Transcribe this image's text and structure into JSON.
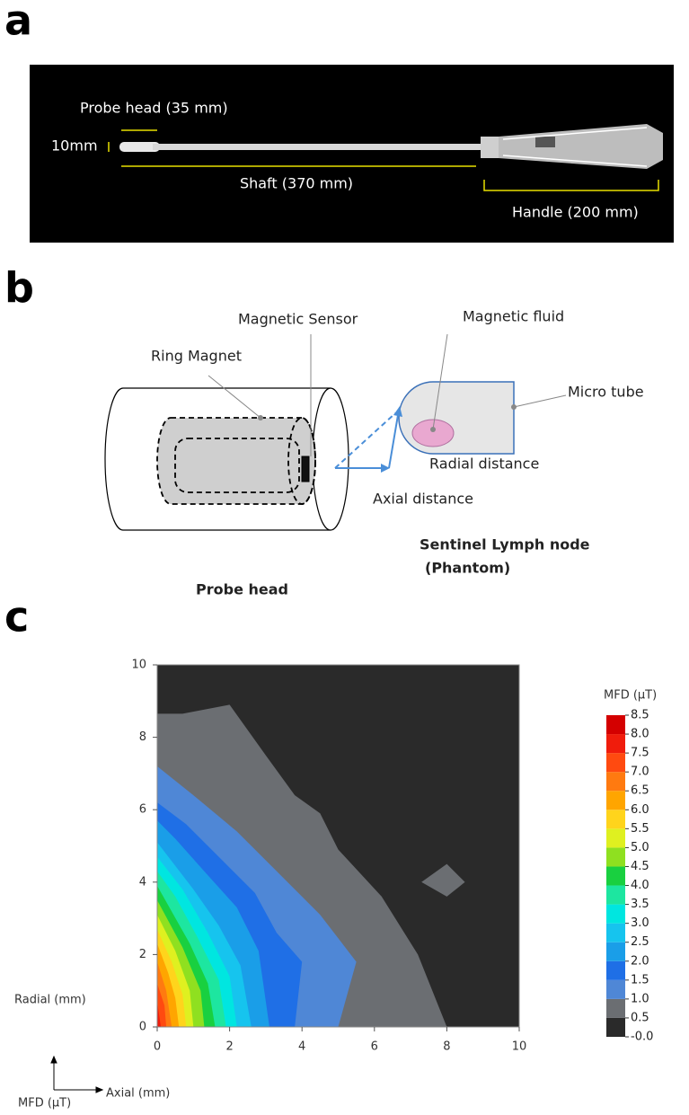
{
  "panel_a": {
    "label": "a",
    "probe_head": "Probe head (35 mm)",
    "diameter": "10mm",
    "shaft": "Shaft (370 mm)",
    "handle": "Handle (200 mm)"
  },
  "panel_b": {
    "label": "b",
    "magnetic_sensor": "Magnetic Sensor",
    "ring_magnet": "Ring Magnet",
    "magnetic_fluid": "Magnetic fluid",
    "micro_tube": "Micro tube",
    "radial_distance": "Radial distance",
    "axial_distance": "Axial distance",
    "phantom_title": "Sentinel Lymph node",
    "phantom_sub": "(Phantom)",
    "probe_head": "Probe head"
  },
  "panel_c_label": "c",
  "chart_data": {
    "type": "contour",
    "x_label": "Axial (mm)",
    "y_label": "Radial (mm)",
    "z_label": "MFD (μT)",
    "xlim": [
      0,
      10
    ],
    "ylim": [
      0,
      10
    ],
    "xticks": [
      0,
      2,
      4,
      6,
      8,
      10
    ],
    "yticks": [
      0,
      2,
      4,
      6,
      8,
      10
    ],
    "clim": [
      0,
      8.5
    ],
    "cticks": [
      {
        "value": 0,
        "label": "-0.0"
      },
      0.5,
      {
        "value": 1,
        "label": "1.0"
      },
      1.5,
      {
        "value": 2,
        "label": "2.0"
      },
      2.5,
      {
        "value": 3,
        "label": "3.0"
      },
      3.5,
      {
        "value": 4,
        "label": "4.0"
      },
      4.5,
      {
        "value": 5,
        "label": "5.0"
      },
      5.5,
      {
        "value": 6,
        "label": "6.0"
      },
      6.5,
      {
        "value": 7,
        "label": "7.0"
      },
      7.5,
      {
        "value": 8,
        "label": "8.0"
      },
      8.5
    ],
    "colors": [
      "#2a2a2a",
      "#6b6e72",
      "#4f87d6",
      "#1f6fe6",
      "#1a9ee8",
      "#16c4ee",
      "#00e6e0",
      "#1de6a0",
      "#19d040",
      "#8fe020",
      "#dff020",
      "#ffd41c",
      "#ffa500",
      "#ff7a10",
      "#ff4a10",
      "#f01c0c",
      "#d40000"
    ],
    "regions": [
      {
        "level": 0,
        "points": [
          [
            0,
            0
          ],
          [
            0,
            10
          ],
          [
            10,
            10
          ],
          [
            10,
            0
          ]
        ]
      },
      {
        "level": 0.5,
        "points": [
          [
            0,
            8.65
          ],
          [
            0.7,
            8.65
          ],
          [
            2,
            8.9
          ],
          [
            3,
            7.5
          ],
          [
            3.8,
            6.4
          ],
          [
            4.5,
            5.9
          ],
          [
            5,
            4.9
          ],
          [
            6.2,
            3.6
          ],
          [
            7.2,
            2
          ],
          [
            8,
            0
          ],
          [
            0,
            0
          ]
        ]
      },
      {
        "level": 0.5,
        "points": [
          [
            7.3,
            4
          ],
          [
            8,
            4.5
          ],
          [
            8.5,
            4
          ],
          [
            8,
            3.6
          ]
        ]
      },
      {
        "level": 1,
        "points": [
          [
            0,
            7.2
          ],
          [
            1,
            6.4
          ],
          [
            2.2,
            5.4
          ],
          [
            3.2,
            4.4
          ],
          [
            4.5,
            3.1
          ],
          [
            5.5,
            1.8
          ],
          [
            5,
            0
          ],
          [
            0,
            0
          ]
        ]
      },
      {
        "level": 1.5,
        "points": [
          [
            0,
            6.2
          ],
          [
            0.8,
            5.6
          ],
          [
            1.8,
            4.6
          ],
          [
            2.7,
            3.7
          ],
          [
            3.3,
            2.6
          ],
          [
            4,
            1.8
          ],
          [
            3.8,
            0
          ],
          [
            0,
            0
          ]
        ]
      },
      {
        "level": 2,
        "points": [
          [
            0,
            5.7
          ],
          [
            0.5,
            5.2
          ],
          [
            1.3,
            4.3
          ],
          [
            2.2,
            3.3
          ],
          [
            2.8,
            2.1
          ],
          [
            3.1,
            0
          ],
          [
            0,
            0
          ]
        ]
      },
      {
        "level": 2.5,
        "points": [
          [
            0,
            5.1
          ],
          [
            1,
            3.8
          ],
          [
            1.7,
            2.8
          ],
          [
            2.3,
            1.7
          ],
          [
            2.6,
            0
          ],
          [
            0,
            0
          ]
        ]
      },
      {
        "level": 3,
        "points": [
          [
            0,
            4.7
          ],
          [
            0.7,
            3.8
          ],
          [
            1.4,
            2.6
          ],
          [
            2,
            1.4
          ],
          [
            2.2,
            0
          ],
          [
            0,
            0
          ]
        ]
      },
      {
        "level": 3.5,
        "points": [
          [
            0,
            4.3
          ],
          [
            0.5,
            3.6
          ],
          [
            1.1,
            2.5
          ],
          [
            1.7,
            1.3
          ],
          [
            1.9,
            0
          ],
          [
            0,
            0
          ]
        ]
      },
      {
        "level": 4,
        "points": [
          [
            0,
            3.9
          ],
          [
            0.9,
            2.3
          ],
          [
            1.4,
            1.2
          ],
          [
            1.6,
            0
          ],
          [
            0,
            0
          ]
        ]
      },
      {
        "level": 4.5,
        "points": [
          [
            0,
            3.5
          ],
          [
            0.7,
            2.2
          ],
          [
            1.2,
            1
          ],
          [
            1.3,
            0
          ],
          [
            0,
            0
          ]
        ]
      },
      {
        "level": 5,
        "points": [
          [
            0,
            3.1
          ],
          [
            0.5,
            2.1
          ],
          [
            0.9,
            1
          ],
          [
            1,
            0
          ],
          [
            0,
            0
          ]
        ]
      },
      {
        "level": 5.5,
        "points": [
          [
            0,
            2.7
          ],
          [
            0.4,
            1.8
          ],
          [
            0.7,
            0.9
          ],
          [
            0.8,
            0
          ],
          [
            0,
            0
          ]
        ]
      },
      {
        "level": 6,
        "points": [
          [
            0,
            2.3
          ],
          [
            0.3,
            1.5
          ],
          [
            0.5,
            0.8
          ],
          [
            0.6,
            0
          ],
          [
            0,
            0
          ]
        ]
      },
      {
        "level": 6.5,
        "points": [
          [
            0,
            1.8
          ],
          [
            0.25,
            1
          ],
          [
            0.4,
            0
          ],
          [
            0,
            0
          ]
        ]
      },
      {
        "level": 7,
        "points": [
          [
            0,
            1.2
          ],
          [
            0.2,
            0.6
          ],
          [
            0.25,
            0
          ],
          [
            0,
            0
          ]
        ]
      },
      {
        "level": 7.5,
        "points": [
          [
            0,
            0.7
          ],
          [
            0.1,
            0
          ],
          [
            0,
            0
          ]
        ]
      }
    ]
  }
}
